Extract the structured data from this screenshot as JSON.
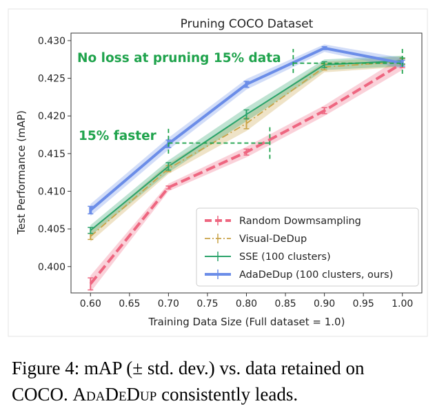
{
  "chart_data": {
    "type": "line",
    "title": "Pruning COCO Dataset",
    "xlabel": "Training Data Size (Full dataset = 1.0)",
    "ylabel": "Test Performance (mAP)",
    "xlim": [
      0.575,
      1.025
    ],
    "ylim": [
      0.3965,
      0.431
    ],
    "xticks": [
      "0.60",
      "0.65",
      "0.70",
      "0.75",
      "0.80",
      "0.85",
      "0.90",
      "0.95",
      "1.00"
    ],
    "yticks": [
      "0.400",
      "0.405",
      "0.410",
      "0.415",
      "0.420",
      "0.425",
      "0.430"
    ],
    "x": [
      0.6,
      0.7,
      0.8,
      0.9,
      1.0
    ],
    "series": [
      {
        "name": "Random Dowmsampling",
        "color": "#ee6680",
        "style": "dashed",
        "values": [
          0.3977,
          0.4105,
          0.4152,
          0.4207,
          0.427
        ],
        "std": [
          0.0008,
          0.0002,
          0.0004,
          0.0004,
          0.0006
        ]
      },
      {
        "name": "Visual-DeDup",
        "color": "#c9a347",
        "style": "dashdot",
        "values": [
          0.404,
          0.413,
          0.419,
          0.4265,
          0.4272
        ],
        "std": [
          0.0004,
          0.0004,
          0.0007,
          0.0004,
          0.0004
        ]
      },
      {
        "name": "SSE (100 clusters)",
        "color": "#2aa36a",
        "style": "solid",
        "values": [
          0.4048,
          0.4133,
          0.4202,
          0.4268,
          0.4273
        ],
        "std": [
          0.0004,
          0.0005,
          0.0006,
          0.0004,
          0.0004
        ]
      },
      {
        "name": "AdaDeDup (100 clusters, ours)",
        "color": "#6b8de8",
        "style": "solid",
        "values": [
          0.4075,
          0.4163,
          0.4242,
          0.429,
          0.427
        ],
        "std": [
          0.0005,
          0.0005,
          0.0004,
          0.0002,
          0.0004
        ]
      }
    ],
    "legend_position": "lower-right",
    "annotations": [
      {
        "text": "No loss at pruning 15% data",
        "color": "#1fa34c",
        "hline_y": 0.427,
        "hline_x": [
          0.86,
          1.0
        ],
        "vline_x": 0.86,
        "vline_y": [
          0.4257,
          0.4289
        ],
        "vline2_x": 1.0,
        "vline2_y": [
          0.4256,
          0.4289
        ]
      },
      {
        "text": "15% faster",
        "color": "#1fa34c",
        "hline_y": 0.4164,
        "hline_x": [
          0.7,
          0.83
        ],
        "vline_x": 0.7,
        "vline_y": [
          0.415,
          0.4185
        ],
        "vline2_x": 0.83,
        "vline2_y": [
          0.4143,
          0.4185
        ]
      }
    ]
  },
  "caption": {
    "line1": "Figure 4: mAP (± std. dev.) vs. data retained on",
    "line2_pre": "COCO. ",
    "line2_name": "AdaDeDup",
    "line2_post": " consistently leads."
  }
}
